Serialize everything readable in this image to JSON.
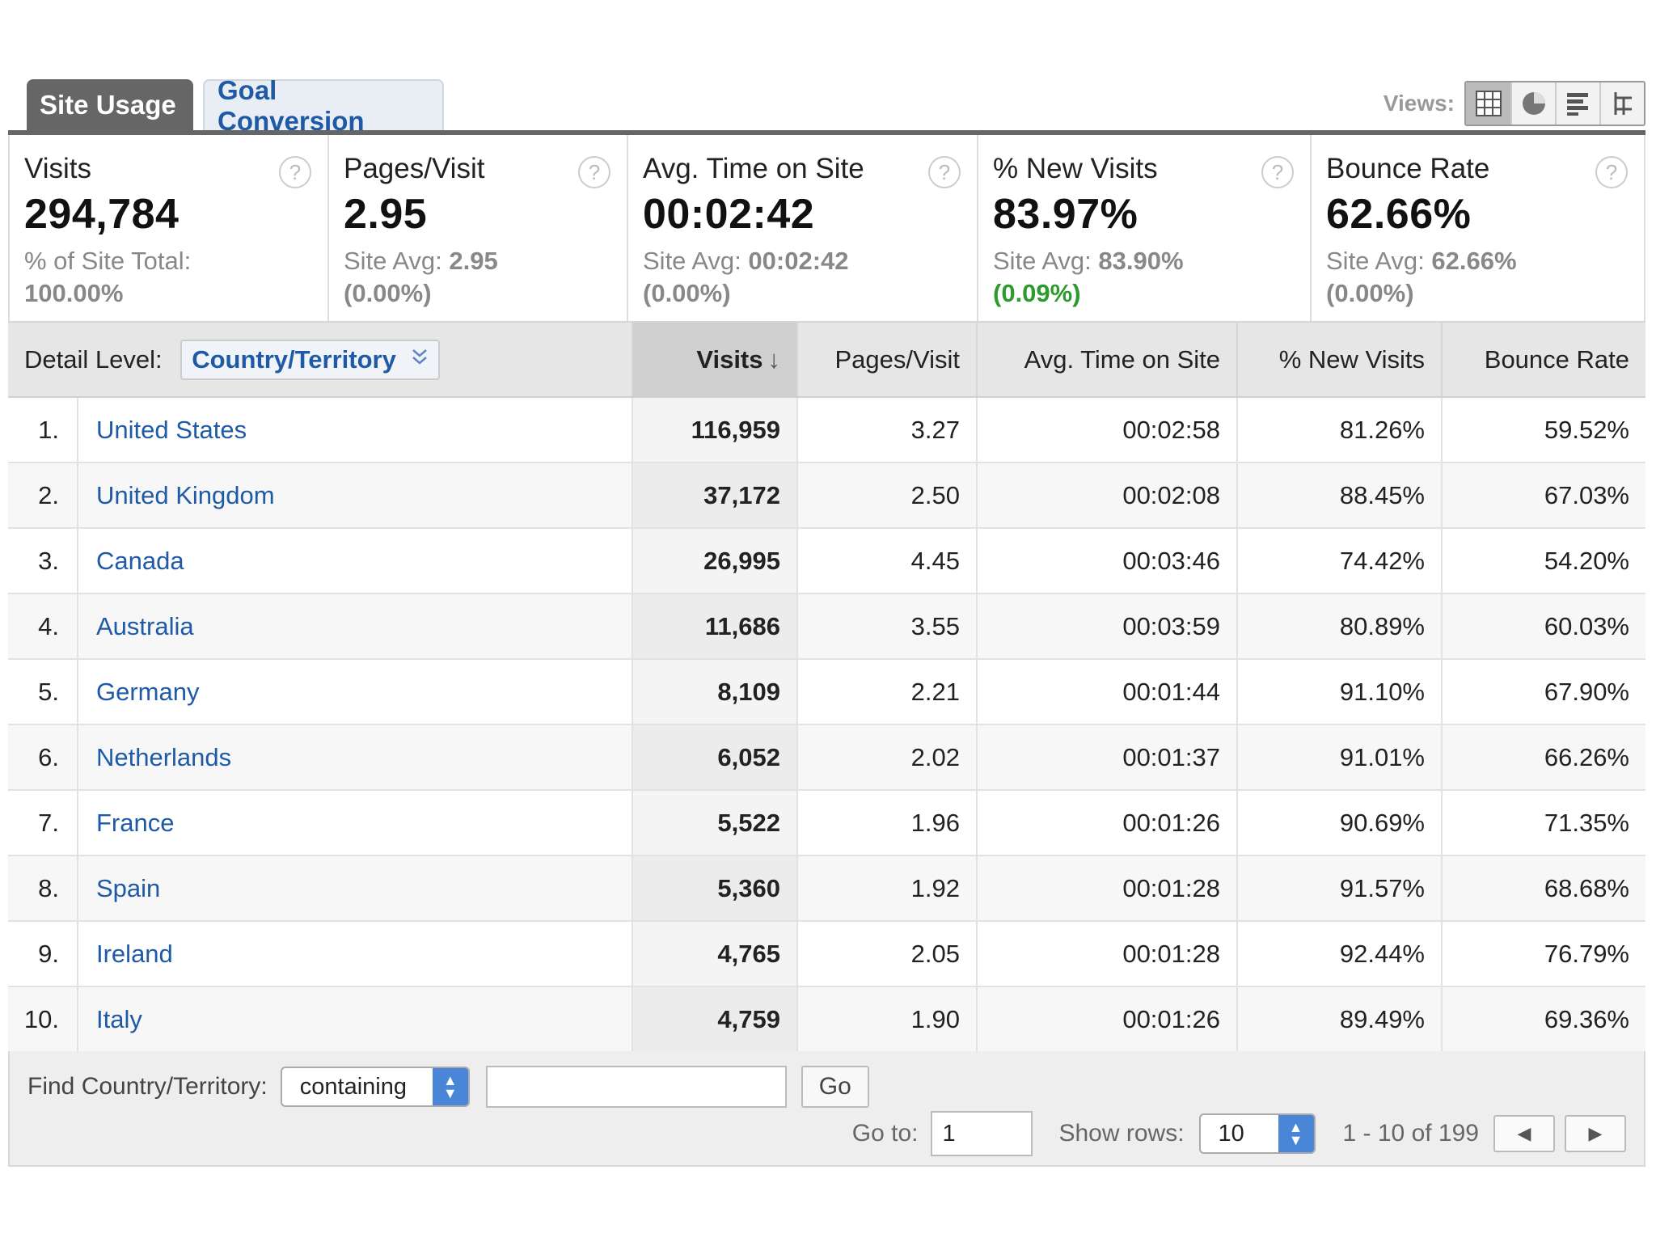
{
  "tabs": [
    {
      "label": "Site Usage",
      "active": true
    },
    {
      "label": "Goal Conversion",
      "active": false
    }
  ],
  "views": {
    "label": "Views:",
    "buttons": [
      "table-view-icon",
      "pie-view-icon",
      "bar-view-icon",
      "pivot-view-icon"
    ]
  },
  "summary": [
    {
      "title": "Visits",
      "value": "294,784",
      "sub1": "% of Site Total:",
      "sub2": "100.00%",
      "help": "?"
    },
    {
      "title": "Pages/Visit",
      "value": "2.95",
      "sub1_label": "Site Avg: ",
      "sub1_value": "2.95",
      "sub2": "(0.00%)",
      "help": "?"
    },
    {
      "title": "Avg. Time on Site",
      "value": "00:02:42",
      "sub1_label": "Site Avg: ",
      "sub1_value": "00:02:42",
      "sub2": "(0.00%)",
      "help": "?"
    },
    {
      "title": "% New Visits",
      "value": "83.97%",
      "sub1_label": "Site Avg: ",
      "sub1_value": "83.90%",
      "sub2": "(0.09%)",
      "help": "?"
    },
    {
      "title": "Bounce Rate",
      "value": "62.66%",
      "sub1_label": "Site Avg: ",
      "sub1_value": "62.66%",
      "sub2": "(0.00%)",
      "help": "?"
    }
  ],
  "table": {
    "detail_label": "Detail Level:",
    "detail_value": "Country/Territory",
    "columns": [
      "Visits",
      "Pages/Visit",
      "Avg. Time on Site",
      "% New Visits",
      "Bounce Rate"
    ],
    "sort_arrow": "↓",
    "rows": [
      {
        "rank": "1.",
        "country": "United States",
        "visits": "116,959",
        "ppv": "3.27",
        "time": "00:02:58",
        "newv": "81.26%",
        "bounce": "59.52%"
      },
      {
        "rank": "2.",
        "country": "United Kingdom",
        "visits": "37,172",
        "ppv": "2.50",
        "time": "00:02:08",
        "newv": "88.45%",
        "bounce": "67.03%"
      },
      {
        "rank": "3.",
        "country": "Canada",
        "visits": "26,995",
        "ppv": "4.45",
        "time": "00:03:46",
        "newv": "74.42%",
        "bounce": "54.20%"
      },
      {
        "rank": "4.",
        "country": "Australia",
        "visits": "11,686",
        "ppv": "3.55",
        "time": "00:03:59",
        "newv": "80.89%",
        "bounce": "60.03%"
      },
      {
        "rank": "5.",
        "country": "Germany",
        "visits": "8,109",
        "ppv": "2.21",
        "time": "00:01:44",
        "newv": "91.10%",
        "bounce": "67.90%"
      },
      {
        "rank": "6.",
        "country": "Netherlands",
        "visits": "6,052",
        "ppv": "2.02",
        "time": "00:01:37",
        "newv": "91.01%",
        "bounce": "66.26%"
      },
      {
        "rank": "7.",
        "country": "France",
        "visits": "5,522",
        "ppv": "1.96",
        "time": "00:01:26",
        "newv": "90.69%",
        "bounce": "71.35%"
      },
      {
        "rank": "8.",
        "country": "Spain",
        "visits": "5,360",
        "ppv": "1.92",
        "time": "00:01:28",
        "newv": "91.57%",
        "bounce": "68.68%"
      },
      {
        "rank": "9.",
        "country": "Ireland",
        "visits": "4,765",
        "ppv": "2.05",
        "time": "00:01:28",
        "newv": "92.44%",
        "bounce": "76.79%"
      },
      {
        "rank": "10.",
        "country": "Italy",
        "visits": "4,759",
        "ppv": "1.90",
        "time": "00:01:26",
        "newv": "89.49%",
        "bounce": "69.36%"
      }
    ]
  },
  "footer": {
    "find_label": "Find Country/Territory:",
    "match_mode": "containing",
    "search_value": "",
    "go_label": "Go",
    "goto_label": "Go to:",
    "goto_value": "1",
    "show_rows_label": "Show rows:",
    "show_rows_value": "10",
    "range_text": "1 - 10 of 199",
    "prev_icon": "◀",
    "next_icon": "▶"
  },
  "colors": {
    "link": "#1f5aa6",
    "positive": "#2c9a2c",
    "tab_active": "#666666"
  }
}
